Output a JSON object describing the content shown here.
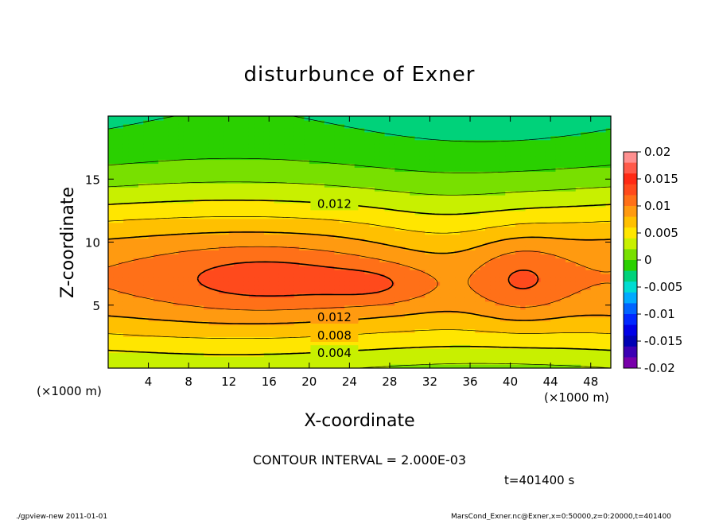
{
  "chart_data": {
    "type": "contour",
    "title": "disturbunce of Exner",
    "xlabel": "X-coordinate",
    "ylabel": "Z-coordinate",
    "x_unit_left": "(×1000 m)",
    "x_unit_right": "(×1000 m)",
    "xlim": [
      0,
      50
    ],
    "ylim": [
      0,
      20
    ],
    "x_ticks": [
      4,
      8,
      12,
      16,
      20,
      24,
      28,
      32,
      36,
      40,
      44,
      48
    ],
    "y_ticks": [
      5,
      10,
      15
    ],
    "colorbar": {
      "ticks": [
        "0.02",
        "0.015",
        "0.01",
        "0.005",
        "0",
        "-0.005",
        "-0.01",
        "-0.015",
        "-0.02"
      ],
      "levels": [
        {
          "lo": 0.018,
          "hi": 0.02,
          "color": "#ff9090"
        },
        {
          "lo": 0.016,
          "hi": 0.018,
          "color": "#ff5a4a"
        },
        {
          "lo": 0.014,
          "hi": 0.016,
          "color": "#ff2a14"
        },
        {
          "lo": 0.012,
          "hi": 0.014,
          "color": "#ff4a1c"
        },
        {
          "lo": 0.01,
          "hi": 0.012,
          "color": "#ff7018"
        },
        {
          "lo": 0.008,
          "hi": 0.01,
          "color": "#ff9a10"
        },
        {
          "lo": 0.006,
          "hi": 0.008,
          "color": "#ffc000"
        },
        {
          "lo": 0.004,
          "hi": 0.006,
          "color": "#ffe600"
        },
        {
          "lo": 0.002,
          "hi": 0.004,
          "color": "#c8f000"
        },
        {
          "lo": 0.0,
          "hi": 0.002,
          "color": "#78e000"
        },
        {
          "lo": -0.002,
          "hi": 0.0,
          "color": "#2ad000"
        },
        {
          "lo": -0.004,
          "hi": -0.002,
          "color": "#00d27a"
        },
        {
          "lo": -0.006,
          "hi": -0.004,
          "color": "#00dcd2"
        },
        {
          "lo": -0.008,
          "hi": -0.006,
          "color": "#00aaff"
        },
        {
          "lo": -0.01,
          "hi": -0.008,
          "color": "#0064ff"
        },
        {
          "lo": -0.012,
          "hi": -0.01,
          "color": "#0028ff"
        },
        {
          "lo": -0.014,
          "hi": -0.012,
          "color": "#0000e6"
        },
        {
          "lo": -0.016,
          "hi": -0.014,
          "color": "#0000b4"
        },
        {
          "lo": -0.018,
          "hi": -0.016,
          "color": "#3c00b4"
        },
        {
          "lo": -0.02,
          "hi": -0.018,
          "color": "#7800aa"
        }
      ]
    },
    "contour_labels": [
      "0.012",
      "0.012",
      "0.008",
      "0.004"
    ],
    "contour_interval_text": "CONTOUR INTERVAL = 2.000E-03",
    "time_text": "t=401400 s",
    "footer_left": "./gpview-new  2011-01-01",
    "footer_right": "MarsCond_Exner.nc@Exner,x=0:50000,z=0:20000,t=401400"
  }
}
